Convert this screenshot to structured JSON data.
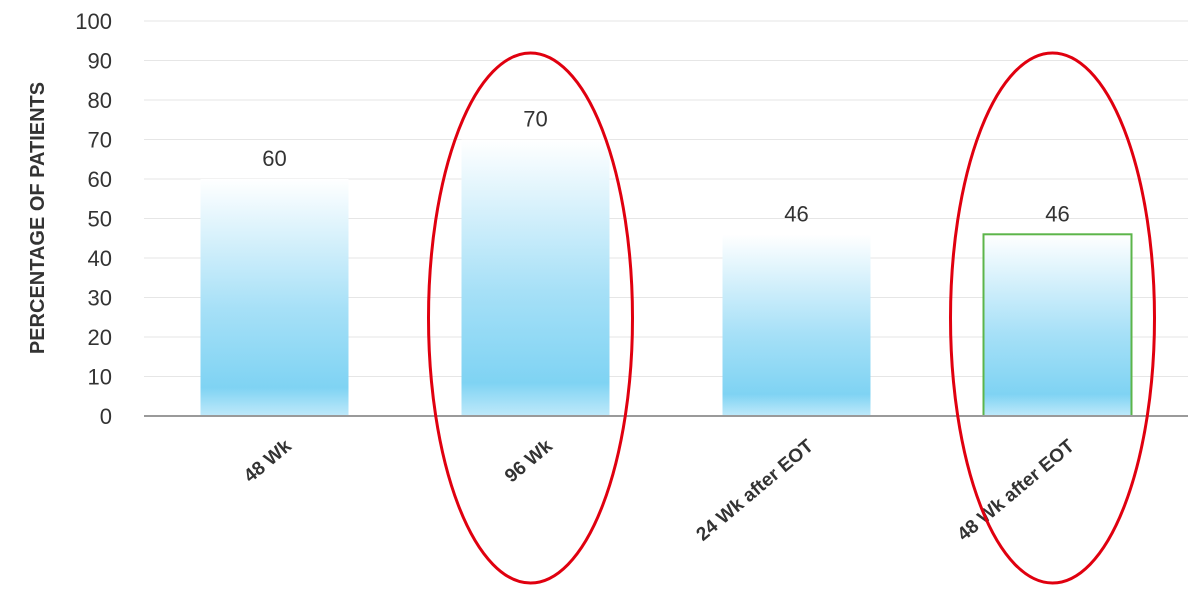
{
  "chart_data": {
    "type": "bar",
    "title": "",
    "xlabel": "",
    "ylabel": "PERCENTAGE OF PATIENTS",
    "ylim": [
      0,
      100
    ],
    "yticks": [
      0,
      10,
      20,
      30,
      40,
      50,
      60,
      70,
      80,
      90,
      100
    ],
    "grid": true,
    "categories": [
      "48 Wk",
      "96 Wk",
      "24 Wk after EOT",
      "48 Wk after EOT"
    ],
    "values": [
      60,
      70,
      46,
      46
    ],
    "data_labels": [
      "60",
      "70",
      "46",
      "46"
    ],
    "highlighted_categories": [
      "96 Wk",
      "48 Wk after EOT"
    ],
    "outlined_categories": [
      "48 Wk after EOT"
    ],
    "colors": {
      "bar_top": "#ffffff",
      "bar_bottom": "#7fd3f3",
      "annotation_ellipse": "#e0000f",
      "bar_outline": "#5cb54a",
      "grid": "#e6e6e6",
      "axis": "#9a9a9a"
    }
  }
}
